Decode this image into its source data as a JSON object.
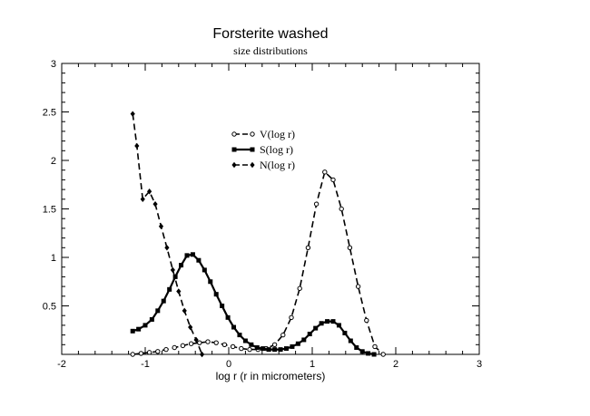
{
  "chart_data": {
    "type": "line",
    "title": "Forsterite washed",
    "subtitle": "size distributions",
    "xlabel": "log r (r in micrometers)",
    "ylabel": "",
    "xlim": [
      -2,
      3
    ],
    "ylim": [
      0,
      3
    ],
    "x_ticks": [
      -2,
      -1,
      0,
      1,
      2,
      3
    ],
    "y_ticks": [
      0.5,
      1,
      1.5,
      2,
      2.5,
      3
    ],
    "grid": false,
    "legend_placement": "upper-center",
    "series": [
      {
        "name": "V(log r)",
        "marker": "open-circle",
        "line": "dashed",
        "color": "#000000",
        "x": [
          -1.15,
          -1.05,
          -0.95,
          -0.85,
          -0.75,
          -0.65,
          -0.55,
          -0.45,
          -0.35,
          -0.25,
          -0.15,
          -0.05,
          0.05,
          0.15,
          0.25,
          0.35,
          0.45,
          0.55,
          0.65,
          0.75,
          0.85,
          0.95,
          1.05,
          1.15,
          1.25,
          1.35,
          1.45,
          1.55,
          1.65,
          1.75,
          1.85
        ],
        "y": [
          0.0,
          0.01,
          0.02,
          0.03,
          0.05,
          0.07,
          0.09,
          0.11,
          0.12,
          0.13,
          0.12,
          0.1,
          0.08,
          0.06,
          0.05,
          0.05,
          0.06,
          0.1,
          0.2,
          0.38,
          0.68,
          1.1,
          1.55,
          1.88,
          1.8,
          1.5,
          1.1,
          0.7,
          0.35,
          0.08,
          0.0
        ]
      },
      {
        "name": "S(log r)",
        "marker": "filled-square",
        "line": "solid",
        "color": "#000000",
        "x": [
          -1.15,
          -1.08,
          -1.0,
          -0.92,
          -0.85,
          -0.78,
          -0.71,
          -0.64,
          -0.57,
          -0.5,
          -0.43,
          -0.36,
          -0.29,
          -0.22,
          -0.15,
          -0.08,
          -0.01,
          0.06,
          0.13,
          0.2,
          0.27,
          0.34,
          0.41,
          0.48,
          0.55,
          0.62,
          0.69,
          0.76,
          0.83,
          0.9,
          0.97,
          1.04,
          1.11,
          1.18,
          1.25,
          1.32,
          1.39,
          1.46,
          1.53,
          1.6,
          1.67,
          1.74
        ],
        "y": [
          0.24,
          0.26,
          0.3,
          0.36,
          0.45,
          0.55,
          0.67,
          0.8,
          0.92,
          1.02,
          1.03,
          0.97,
          0.87,
          0.75,
          0.62,
          0.5,
          0.38,
          0.28,
          0.2,
          0.14,
          0.1,
          0.07,
          0.06,
          0.05,
          0.05,
          0.05,
          0.06,
          0.08,
          0.11,
          0.15,
          0.21,
          0.27,
          0.32,
          0.34,
          0.34,
          0.3,
          0.22,
          0.14,
          0.07,
          0.03,
          0.01,
          0.0
        ]
      },
      {
        "name": "N(log r)",
        "marker": "filled-diamond",
        "line": "dashed",
        "color": "#000000",
        "x": [
          -1.15,
          -1.1,
          -1.03,
          -0.95,
          -0.88,
          -0.81,
          -0.74,
          -0.67,
          -0.6,
          -0.53,
          -0.46,
          -0.39,
          -0.32
        ],
        "y": [
          2.48,
          2.15,
          1.6,
          1.68,
          1.55,
          1.32,
          1.1,
          0.87,
          0.65,
          0.45,
          0.28,
          0.15,
          0.0
        ]
      }
    ]
  }
}
